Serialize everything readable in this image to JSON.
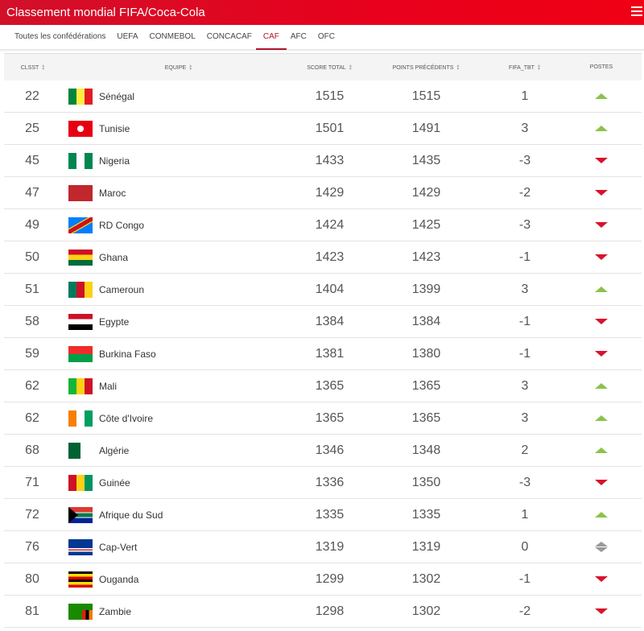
{
  "header": {
    "title": "Classement mondial FIFA/Coca-Cola",
    "menu_icon": "hamburger-icon"
  },
  "tabs": [
    {
      "label": "Toutes les confédérations"
    },
    {
      "label": "UEFA"
    },
    {
      "label": "CONMEBOL"
    },
    {
      "label": "CONCACAF"
    },
    {
      "label": "CAF",
      "active": true
    },
    {
      "label": "AFC"
    },
    {
      "label": "OFC"
    }
  ],
  "table": {
    "columns": [
      "CLSST",
      "EQUIPE",
      "SCORE TOTAL",
      "POINTS PRÉCÉDENTS",
      "FIFA_TBT",
      "POSTES"
    ],
    "colors": {
      "up": "#8bc34a",
      "down": "#d8132c",
      "same": "#999999",
      "accent": "#b0142b"
    },
    "rows": [
      {
        "rank": "22",
        "team": "Sénégal",
        "flag": "sen",
        "score": "1515",
        "prev": "1515",
        "tbt": "1",
        "move": "up"
      },
      {
        "rank": "25",
        "team": "Tunisie",
        "flag": "tun",
        "score": "1501",
        "prev": "1491",
        "tbt": "3",
        "move": "up"
      },
      {
        "rank": "45",
        "team": "Nigeria",
        "flag": "nga",
        "score": "1433",
        "prev": "1435",
        "tbt": "-3",
        "move": "down"
      },
      {
        "rank": "47",
        "team": "Maroc",
        "flag": "mar",
        "score": "1429",
        "prev": "1429",
        "tbt": "-2",
        "move": "down"
      },
      {
        "rank": "49",
        "team": "RD Congo",
        "flag": "cod",
        "score": "1424",
        "prev": "1425",
        "tbt": "-3",
        "move": "down"
      },
      {
        "rank": "50",
        "team": "Ghana",
        "flag": "gha",
        "score": "1423",
        "prev": "1423",
        "tbt": "-1",
        "move": "down"
      },
      {
        "rank": "51",
        "team": "Cameroun",
        "flag": "cmr",
        "score": "1404",
        "prev": "1399",
        "tbt": "3",
        "move": "up"
      },
      {
        "rank": "58",
        "team": "Egypte",
        "flag": "egy",
        "score": "1384",
        "prev": "1384",
        "tbt": "-1",
        "move": "down"
      },
      {
        "rank": "59",
        "team": "Burkina Faso",
        "flag": "bfa",
        "score": "1381",
        "prev": "1380",
        "tbt": "-1",
        "move": "down"
      },
      {
        "rank": "62",
        "team": "Mali",
        "flag": "mli",
        "score": "1365",
        "prev": "1365",
        "tbt": "3",
        "move": "up"
      },
      {
        "rank": "62",
        "team": "Côte d'Ivoire",
        "flag": "civ",
        "score": "1365",
        "prev": "1365",
        "tbt": "3",
        "move": "up"
      },
      {
        "rank": "68",
        "team": "Algérie",
        "flag": "alg",
        "score": "1346",
        "prev": "1348",
        "tbt": "2",
        "move": "up"
      },
      {
        "rank": "71",
        "team": "Guinée",
        "flag": "gui",
        "score": "1336",
        "prev": "1350",
        "tbt": "-3",
        "move": "down"
      },
      {
        "rank": "72",
        "team": "Afrique du Sud",
        "flag": "rsa",
        "score": "1335",
        "prev": "1335",
        "tbt": "1",
        "move": "up"
      },
      {
        "rank": "76",
        "team": "Cap-Vert",
        "flag": "cpv",
        "score": "1319",
        "prev": "1319",
        "tbt": "0",
        "move": "same"
      },
      {
        "rank": "80",
        "team": "Ouganda",
        "flag": "uga",
        "score": "1299",
        "prev": "1302",
        "tbt": "-1",
        "move": "down"
      },
      {
        "rank": "81",
        "team": "Zambie",
        "flag": "zam",
        "score": "1298",
        "prev": "1302",
        "tbt": "-2",
        "move": "down"
      }
    ]
  }
}
